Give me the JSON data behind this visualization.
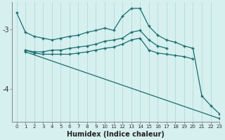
{
  "xlabel": "Humidex (Indice chaleur)",
  "bg_color": "#d6efef",
  "grid_color": "#b8dede",
  "line_color": "#1a6e6e",
  "xlim": [
    -0.5,
    23
  ],
  "ylim": [
    -4.55,
    -2.55
  ],
  "yticks": [
    -4,
    -3
  ],
  "xticks": [
    0,
    1,
    2,
    3,
    4,
    5,
    6,
    7,
    8,
    9,
    10,
    11,
    12,
    13,
    14,
    15,
    16,
    17,
    18,
    19,
    20,
    21,
    22,
    23
  ],
  "series": [
    {
      "x": [
        0,
        1,
        2,
        3,
        4,
        5,
        6,
        7,
        8,
        9,
        10,
        11,
        12,
        13,
        14,
        15,
        16,
        17,
        18,
        19,
        20,
        21,
        22,
        23
      ],
      "y": [
        -2.72,
        -3.05,
        -3.12,
        -3.15,
        -3.18,
        -3.15,
        -3.12,
        -3.1,
        -3.05,
        -3.02,
        -2.98,
        -3.02,
        -2.78,
        -2.65,
        -2.65,
        -2.95,
        -3.1,
        -3.18,
        -3.22,
        -3.28,
        -3.32,
        -4.12,
        -4.28,
        -4.42
      ]
    },
    {
      "x": [
        1,
        2,
        3,
        4,
        5,
        6,
        7,
        8,
        9,
        10,
        11,
        12,
        13,
        14,
        15,
        16,
        17
      ],
      "y": [
        -3.35,
        -3.38,
        -3.38,
        -3.35,
        -3.35,
        -3.32,
        -3.3,
        -3.28,
        -3.25,
        -3.2,
        -3.18,
        -3.15,
        -3.05,
        -3.02,
        -3.18,
        -3.28,
        -3.32
      ]
    },
    {
      "x": [
        1,
        2,
        3,
        4,
        5,
        6,
        7,
        8,
        9,
        10,
        11,
        12,
        13,
        14,
        15,
        16,
        17,
        18,
        19,
        20
      ],
      "y": [
        -3.35,
        -3.4,
        -3.42,
        -3.42,
        -3.42,
        -3.42,
        -3.4,
        -3.38,
        -3.35,
        -3.32,
        -3.3,
        -3.25,
        -3.18,
        -3.15,
        -3.35,
        -3.4,
        -3.42,
        -3.44,
        -3.46,
        -3.5
      ]
    },
    {
      "x": [
        1,
        23
      ],
      "y": [
        -3.38,
        -4.5
      ]
    }
  ]
}
